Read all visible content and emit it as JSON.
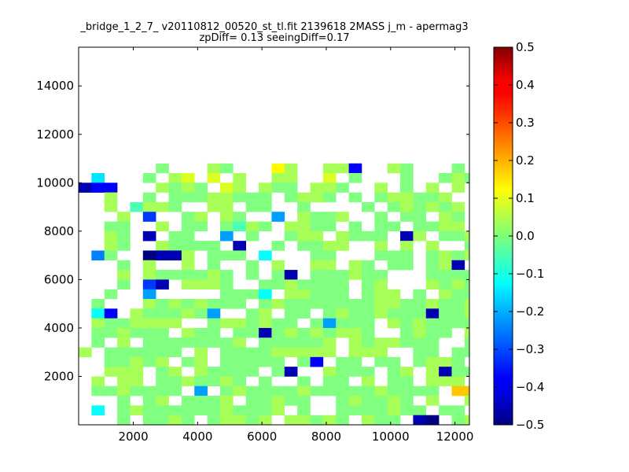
{
  "chart_data": {
    "type": "heatmap",
    "title": "_bridge_1_2_7_ v20110812_00520_st_tl.fit 2139618 2MASS j_m - apermag3",
    "subtitle": "zpDiff= 0.13 seeingDiff=0.17",
    "xlabel": "",
    "ylabel": "",
    "xlim": [
      300,
      12450
    ],
    "ylim": [
      0,
      15600
    ],
    "xticks": [
      "2000",
      "4000",
      "6000",
      "8000",
      "10000",
      "12000"
    ],
    "yticks": [
      "2000",
      "4000",
      "6000",
      "8000",
      "10000",
      "12000",
      "14000"
    ],
    "colorbar": {
      "colormap": "jet",
      "vmin": -0.5,
      "vmax": 0.5,
      "ticks": [
        "0.5",
        "0.4",
        "0.3",
        "0.2",
        "0.1",
        "0.0",
        "−0.1",
        "−0.2",
        "−0.3",
        "−0.4",
        "−0.5"
      ]
    },
    "grid": false,
    "bin_size": 400,
    "x_origin": 300,
    "y_origin": 0,
    "rows_top_to_bottom": [
      "......G.-.FG...gF.JFFb..FG...G.j.T..F.FFFF......",
      ".C...G.Ff.f.F..FF..f.G...G..GFG..jFfF.GfFF.....f",
      "jbb...FGFG.fF.FGG.FFG..F.G.F.F.ff.F.GF..ffGFG...",
      "..F..G.GGGFFGGG.GFFG.G.GFFGGF...F.GF..GGG..FFf..",
      "..F.XFFG..FF.GG..G....G.GFGFGF..G.f..G..GF.FFG..",
      "...F.R..GF.FG..T.FGGF..G.GG.FG...G.F..GFF..F....",
      "..GG..F.GG.GXFG.FFGG.G.GG.GGFF...F.GG.GFGT.GGG..",
      "..FG.j.GG..T.G..GFF.FGGG.jF.GGFG..FGFGGFG..FGFF.",
      "..FG..FGGGG.j..G.GGFF..F.F.F..GFGGF.G.FG...GGG.F",
      ".DG..ZjjF.GGG.Q...GG...GGG.GFGF.GTGGFGG.GFjFj.Gj",
      "...G.F..F.G..G.F..FF.FG.GG.GFj....GF..GGGG.FF...",
      "...F.FGGGGFG.G.Gj.GGGFGG...GGGGGGG..QFGF.GFGG...",
      "...G.Rj.FFFG..GGFGGGG.GF...FGFGG.FFGFGFGG.G.FFF.",
      "..G..T.....GGGQ.FFGGG.GFF.G.FGG.G.FF.GG.G......",
      ".G...FGFGFGGG.GFGGGGGGGFFGGFGGF.GGGGFGGFGGGGG...",
      ".Qb.FGGGFGT..GF.GG.GFGGFGGGjGGF.GF.GGGGjGGFGG.",
      ".FGGFFFF..GFFGFGG.GTGGG.FGFGGGG.G..FFGFF.GFFGF..",
      ".GGFGGG.FGG.GGjGFGFGFFG..GFGG.FGG.FG.GFGGGGG.F..",
      ".G.F.GGGGGGGF.GGGGGF.FGFFGGG..GGTGFGGGG.GFGG.G..",
      "F.GGGGGG.F.GGGGFFFFF.FFF..GG.GGF.GF.G.Q.F.G.G...",
      "..GGFGF.GF.GGGGG.Gb.GG.GG.GFFG.GG..GF.G..F.GF..",
      "..FFF.GF.FGGGG.Gj..FGGG.GF.FjGGGGG.GG.GGFGGFFF..",
      ".F.FF.GGFGGFG.G..G.GG.F.GG.FFF..GF.GFGGGGGFFGFF.",
      ".GGFGGGG.T.GFGGGGFGGGGGFGGGG.YYFF.FGGFGFGGF...",
      "...G.GF.GGGF.GGFGG..GFGGFG.F..FGGFGGF.GF..j.F...",
      ".Q.GFGGGGGGFGGGF.G..GGGGFGG.GG.G.GG.GFGG.G.GF...",
      "...G.GGFG.GFFGF.FFGFG.FGG.jZ.GF.F.GGG.G.G.F....."
    ],
    "cell_values": {
      "Z": -0.5,
      "j": -0.45,
      "b": -0.38,
      "R": -0.32,
      "D": -0.25,
      "T": -0.22,
      "C": -0.15,
      "Q": -0.12,
      "G": 0.0,
      "F": 0.04,
      "f": 0.09,
      "g": 0.13,
      "Y": 0.18,
      "X": -0.05
    }
  }
}
